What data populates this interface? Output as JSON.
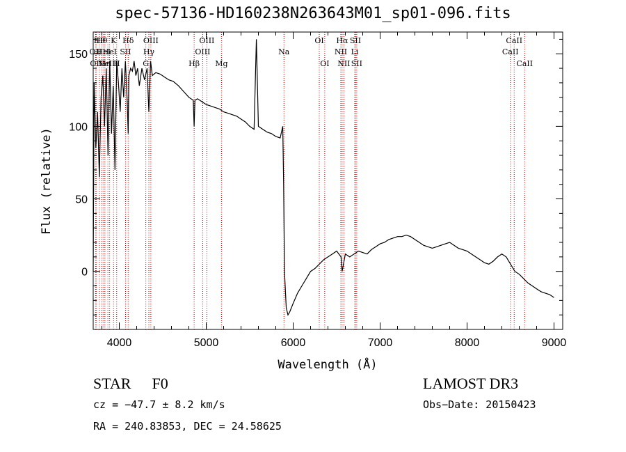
{
  "title": "spec-57136-HD160238N263643M01_sp01-096.fits",
  "info": {
    "class_label": "STAR",
    "subclass": "F0",
    "cz": "cz = −47.7 ± 8.2 km/s",
    "radec": "RA = 240.83853, DEC =  24.58625",
    "survey": "LAMOST DR3",
    "obs_date": "Obs−Date: 20150423"
  },
  "chart_data": {
    "type": "line",
    "xlabel": "Wavelength (Å)",
    "ylabel": "Flux (relative)",
    "xlim": [
      3700,
      9100
    ],
    "ylim": [
      -40,
      165
    ],
    "xticks": [
      4000,
      5000,
      6000,
      7000,
      8000,
      9000
    ],
    "yticks": [
      0,
      50,
      100,
      150
    ],
    "series": [
      {
        "x": [
          3700,
          3710,
          3730,
          3750,
          3770,
          3790,
          3810,
          3830,
          3850,
          3870,
          3890,
          3910,
          3930,
          3950,
          3970,
          3990,
          4010,
          4030,
          4050,
          4070,
          4090,
          4102,
          4110,
          4130,
          4150,
          4170,
          4190,
          4210,
          4230,
          4260,
          4290,
          4320,
          4340,
          4360,
          4380,
          4420,
          4470,
          4520,
          4570,
          4620,
          4680,
          4740,
          4800,
          4850,
          4861,
          4870,
          4900,
          4950,
          5000,
          5050,
          5100,
          5150,
          5200,
          5250,
          5300,
          5350,
          5400,
          5450,
          5500,
          5550,
          5577,
          5600,
          5650,
          5700,
          5750,
          5800,
          5850,
          5880,
          5890,
          5900,
          5920,
          5940,
          5960,
          6000,
          6050,
          6100,
          6150,
          6200,
          6250,
          6300,
          6350,
          6400,
          6450,
          6500,
          6550,
          6563,
          6600,
          6650,
          6700,
          6750,
          6800,
          6850,
          6900,
          6950,
          7000,
          7050,
          7100,
          7150,
          7200,
          7250,
          7300,
          7350,
          7400,
          7450,
          7500,
          7550,
          7600,
          7650,
          7700,
          7750,
          7800,
          7850,
          7900,
          7950,
          8000,
          8050,
          8100,
          8150,
          8200,
          8250,
          8300,
          8350,
          8400,
          8450,
          8500,
          8550,
          8600,
          8650,
          8700,
          8750,
          8800,
          8850,
          8900,
          8950,
          9000
        ],
        "y": [
          0,
          130,
          85,
          110,
          65,
          120,
          135,
          100,
          140,
          80,
          145,
          95,
          128,
          70,
          145,
          130,
          110,
          140,
          120,
          145,
          118,
          95,
          135,
          140,
          138,
          145,
          135,
          140,
          128,
          140,
          132,
          140,
          110,
          145,
          135,
          137,
          136,
          134,
          132,
          131,
          128,
          124,
          120,
          118,
          100,
          118,
          119,
          117,
          115,
          114,
          113,
          112,
          110,
          109,
          108,
          107,
          105,
          103,
          100,
          98,
          160,
          100,
          98,
          96,
          95,
          93,
          92,
          100,
          60,
          0,
          -25,
          -30,
          -28,
          -22,
          -15,
          -10,
          -5,
          0,
          2,
          5,
          8,
          10,
          12,
          14,
          10,
          0,
          12,
          10,
          12,
          14,
          13,
          12,
          15,
          17,
          19,
          20,
          22,
          23,
          24,
          24,
          25,
          24,
          22,
          20,
          18,
          17,
          16,
          17,
          18,
          19,
          20,
          18,
          16,
          15,
          14,
          12,
          10,
          8,
          6,
          5,
          7,
          10,
          12,
          10,
          5,
          0,
          -2,
          -5,
          -8,
          -10,
          -12,
          -14,
          -15,
          -16,
          -18
        ]
      }
    ],
    "lines": [
      {
        "w": 3727,
        "label": "OII",
        "row": 2
      },
      {
        "w": 3734,
        "label": "OII",
        "row": 3
      },
      {
        "w": 3771,
        "label": "Hθ",
        "row": 1
      },
      {
        "w": 3798,
        "label": "Hθ",
        "row": 1
      },
      {
        "w": 3820,
        "label": "HeI",
        "row": 2
      },
      {
        "w": 3835,
        "label": "Hη",
        "row": 3
      },
      {
        "w": 3869,
        "label": "NeIII",
        "row": 3
      },
      {
        "w": 3889,
        "label": "HeI",
        "row": 2
      },
      {
        "w": 3934,
        "label": "K",
        "row": 1
      },
      {
        "w": 3970,
        "label": "H",
        "row": 3
      },
      {
        "w": 4072,
        "label": "SII",
        "row": 2
      },
      {
        "w": 4102,
        "label": "Hδ",
        "row": 1
      },
      {
        "w": 4305,
        "label": "G",
        "row": 3
      },
      {
        "w": 4340,
        "label": "Hγ",
        "row": 2
      },
      {
        "w": 4363,
        "label": "OIII",
        "row": 1
      },
      {
        "w": 4861,
        "label": "Hβ",
        "row": 3
      },
      {
        "w": 4959,
        "label": "OIII",
        "row": 2
      },
      {
        "w": 5007,
        "label": "OIII",
        "row": 1
      },
      {
        "w": 5175,
        "label": "Mg",
        "row": 3
      },
      {
        "w": 5894,
        "label": "Na",
        "row": 2
      },
      {
        "w": 6300,
        "label": "OI",
        "row": 1
      },
      {
        "w": 6363,
        "label": "OI",
        "row": 3
      },
      {
        "w": 6548,
        "label": "NII",
        "row": 2
      },
      {
        "w": 6563,
        "label": "Hα",
        "row": 1
      },
      {
        "w": 6583,
        "label": "NII",
        "row": 3
      },
      {
        "w": 6708,
        "label": "Li",
        "row": 2
      },
      {
        "w": 6716,
        "label": "SII",
        "row": 1
      },
      {
        "w": 6731,
        "label": "SII",
        "row": 3
      },
      {
        "w": 8498,
        "label": "CaII",
        "row": 2
      },
      {
        "w": 8542,
        "label": "CaII",
        "row": 1
      },
      {
        "w": 8662,
        "label": "CaII",
        "row": 3
      }
    ]
  }
}
